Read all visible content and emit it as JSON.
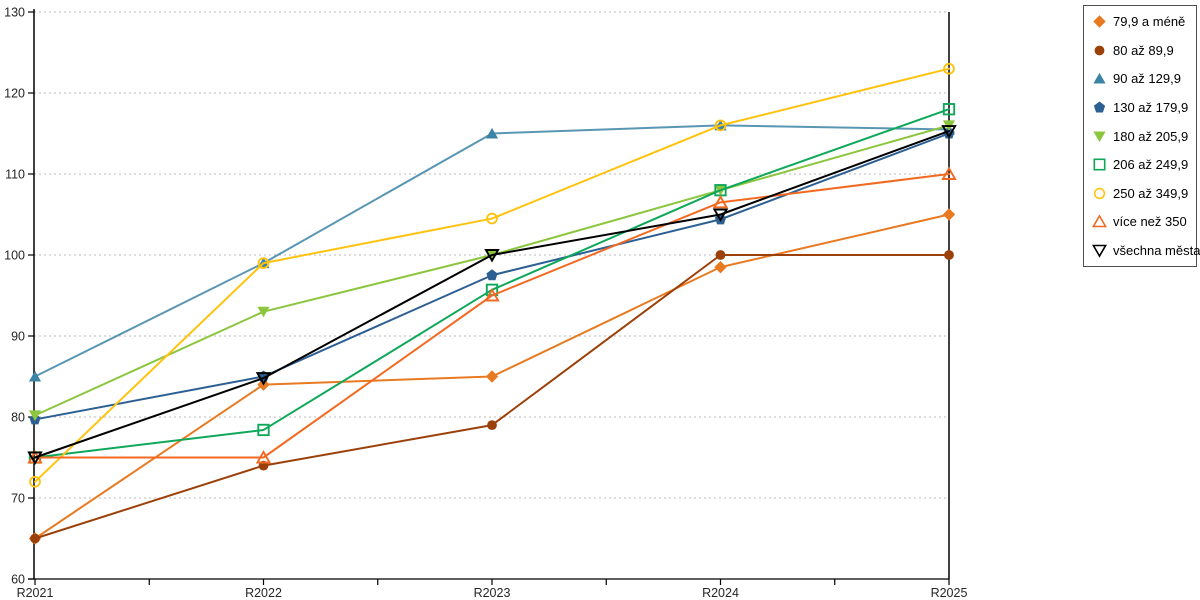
{
  "chart_data": {
    "type": "line",
    "title": "",
    "xlabel": "",
    "ylabel": "",
    "categories": [
      "R2021",
      "R2022",
      "R2023",
      "R2024",
      "R2025"
    ],
    "ylim": [
      60,
      130
    ],
    "yticks": [
      60,
      70,
      80,
      90,
      100,
      110,
      120,
      130
    ],
    "grid": "horizontal-dashed",
    "legend_position": "right",
    "series": [
      {
        "name": "79,9 a méně",
        "color": "#E87A21",
        "marker": "diamond",
        "fill": "filled",
        "values": [
          65,
          84,
          85,
          98.5,
          105
        ]
      },
      {
        "name": "80 až 89,9",
        "color": "#9C4009",
        "marker": "circle",
        "fill": "filled",
        "values": [
          65,
          74,
          79,
          100,
          100
        ]
      },
      {
        "name": "90 až 129,9",
        "color": "#3C84A6",
        "marker": "triangle-up",
        "fill": "filled",
        "values": [
          85,
          99,
          115,
          116,
          115.5
        ]
      },
      {
        "name": "130 až 179,9",
        "color": "#2C5F92",
        "marker": "pentagon",
        "fill": "filled",
        "values": [
          79.7,
          85,
          97.5,
          104.4,
          115
        ]
      },
      {
        "name": "180 až 205,9",
        "color": "#8CC63F",
        "marker": "triangle-down",
        "fill": "filled",
        "values": [
          80.2,
          93,
          100,
          108,
          116
        ]
      },
      {
        "name": "206 až 249,9",
        "color": "#0FA85A",
        "marker": "square",
        "fill": "hollow",
        "values": [
          75,
          78.4,
          95.7,
          108,
          118
        ]
      },
      {
        "name": "250 až 349,9",
        "color": "#FFC30F",
        "marker": "circle",
        "fill": "hollow",
        "values": [
          72,
          99,
          104.5,
          116,
          123
        ]
      },
      {
        "name": "více než 350",
        "color": "#F26A22",
        "marker": "triangle-up",
        "fill": "hollow",
        "values": [
          75,
          75,
          95,
          106.5,
          110
        ]
      },
      {
        "name": "všechna města",
        "color": "#000000",
        "marker": "triangle-down",
        "fill": "hollow",
        "values": [
          75,
          84.8,
          100,
          105,
          115.3
        ]
      }
    ]
  },
  "colors": {
    "grid": "#b8b8b8",
    "axis": "#000000",
    "tick_text": "#262626",
    "background": "#ffffff",
    "legend_border": "#4d4d4d"
  }
}
